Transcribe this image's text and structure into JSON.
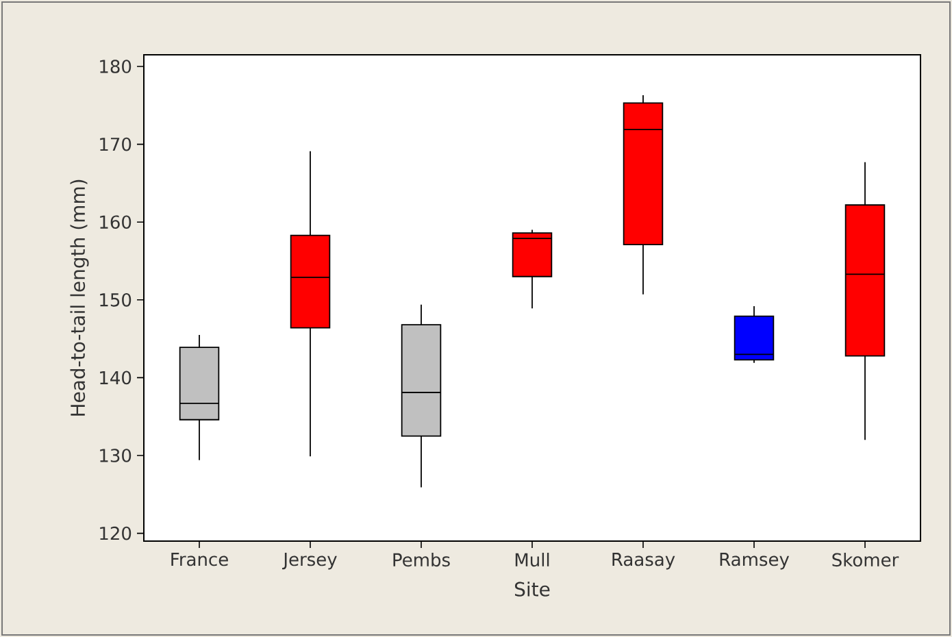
{
  "chart_data": {
    "type": "box",
    "xlabel": "Site",
    "ylabel": "Head-to-tail length (mm)",
    "categories": [
      "France",
      "Jersey",
      "Pembs",
      "Mull",
      "Raasay",
      "Ramsey",
      "Skomer"
    ],
    "colors": [
      "#c0c0c0",
      "#ff0000",
      "#c0c0c0",
      "#ff0000",
      "#ff0000",
      "#0000ff",
      "#ff0000"
    ],
    "boxes": [
      {
        "low": 129.4,
        "q1": 134.6,
        "median": 136.7,
        "q3": 143.9,
        "high": 145.5
      },
      {
        "low": 129.9,
        "q1": 146.4,
        "median": 152.9,
        "q3": 158.3,
        "high": 169.1
      },
      {
        "low": 125.9,
        "q1": 132.5,
        "median": 138.1,
        "q3": 146.8,
        "high": 149.4
      },
      {
        "low": 148.9,
        "q1": 153.0,
        "median": 157.9,
        "q3": 158.6,
        "high": 159.0
      },
      {
        "low": 150.7,
        "q1": 157.1,
        "median": 171.9,
        "q3": 175.3,
        "high": 176.3
      },
      {
        "low": 141.9,
        "q1": 142.3,
        "median": 143.0,
        "q3": 147.9,
        "high": 149.2
      },
      {
        "low": 132.0,
        "q1": 142.8,
        "median": 153.3,
        "q3": 162.2,
        "high": 167.7
      }
    ],
    "ylim": [
      119,
      181.5
    ],
    "yticks": [
      120,
      130,
      140,
      150,
      160,
      170,
      180
    ],
    "grid": false
  }
}
